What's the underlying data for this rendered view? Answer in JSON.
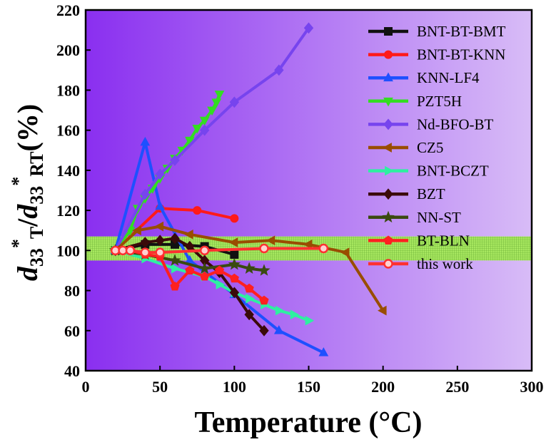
{
  "chart_data": {
    "type": "line",
    "title": "",
    "xlabel": "Temperature (°C)",
    "ylabel": "d33*T/d33*RT(%)",
    "ylabel_parts": {
      "d": "d",
      "sub33": "33",
      "star": "*",
      "subT": "T",
      "slash": "/",
      "subRT": "RT",
      "unit": "(%)"
    },
    "xlim": [
      0,
      300
    ],
    "ylim": [
      40,
      220
    ],
    "xticks": [
      0,
      50,
      100,
      150,
      200,
      250,
      300
    ],
    "yticks": [
      40,
      60,
      80,
      100,
      120,
      140,
      160,
      180,
      200,
      220
    ],
    "grid": false,
    "legend_position": "top-right",
    "band": {
      "ymin": 95,
      "ymax": 107,
      "color": "#9ee04f"
    },
    "series": [
      {
        "name": "BNT-BT-BMT",
        "color": "#111111",
        "marker": "square",
        "x": [
          20,
          40,
          60,
          80,
          100
        ],
        "y": [
          100,
          103,
          103,
          102,
          98
        ]
      },
      {
        "name": "BNT-BT-KNN",
        "color": "#ff1a1a",
        "marker": "circle",
        "x": [
          20,
          50,
          75,
          100
        ],
        "y": [
          100,
          121,
          120,
          116
        ]
      },
      {
        "name": "KNN-LF4",
        "color": "#1e50ff",
        "marker": "triangle-up",
        "x": [
          20,
          40,
          50,
          70,
          100,
          130,
          160
        ],
        "y": [
          100,
          154,
          122,
          95,
          78,
          60,
          49
        ]
      },
      {
        "name": "PZT5H",
        "color": "#33dd22",
        "marker": "triangle-down",
        "x": [
          20,
          30,
          35,
          40,
          45,
          50,
          55,
          60,
          65,
          70,
          75,
          80,
          85,
          88,
          90
        ],
        "y": [
          100,
          110,
          121,
          126,
          131,
          136,
          141,
          146,
          150,
          155,
          161,
          165,
          170,
          174,
          178
        ]
      },
      {
        "name": "Nd-BFO-BT",
        "color": "#7744ee",
        "marker": "diamond",
        "x": [
          20,
          40,
          50,
          60,
          80,
          100,
          130,
          150
        ],
        "y": [
          100,
          128,
          138,
          145,
          160,
          174,
          190,
          211
        ]
      },
      {
        "name": "CZ5",
        "color": "#994d00",
        "marker": "triangle-left",
        "x": [
          20,
          35,
          50,
          70,
          100,
          125,
          150,
          175,
          200
        ],
        "y": [
          100,
          110,
          112,
          108,
          104,
          105,
          103,
          99,
          70
        ]
      },
      {
        "name": "BNT-BCZT",
        "color": "#2ef0a0",
        "marker": "triangle-right",
        "x": [
          20,
          40,
          60,
          80,
          90,
          100,
          110,
          120,
          130,
          140,
          150
        ],
        "y": [
          100,
          96,
          91,
          87,
          83,
          79,
          76,
          73,
          70,
          68,
          65
        ]
      },
      {
        "name": "BZT",
        "color": "#3a0a0a",
        "marker": "diamond",
        "x": [
          20,
          40,
          50,
          60,
          70,
          80,
          90,
          100,
          110,
          120
        ],
        "y": [
          100,
          104,
          105,
          106,
          102,
          95,
          89,
          79,
          68,
          60
        ]
      },
      {
        "name": "NN-ST",
        "color": "#3a4a10",
        "marker": "star",
        "x": [
          20,
          40,
          60,
          80,
          100,
          110,
          120
        ],
        "y": [
          100,
          98,
          95,
          91,
          93,
          91,
          90
        ]
      },
      {
        "name": "BT-BLN",
        "color": "#ff2020",
        "marker": "pentagon",
        "x": [
          20,
          30,
          40,
          50,
          60,
          70,
          80,
          90,
          100,
          110,
          120
        ],
        "y": [
          100,
          100,
          98,
          97,
          82,
          90,
          87,
          90,
          86,
          81,
          75
        ]
      },
      {
        "name": "this work",
        "color": "#ff3030",
        "marker": "circle-open",
        "x": [
          20,
          25,
          30,
          40,
          50,
          80,
          120,
          160
        ],
        "y": [
          100,
          100,
          100,
          99,
          99,
          100,
          101,
          101
        ]
      }
    ]
  }
}
